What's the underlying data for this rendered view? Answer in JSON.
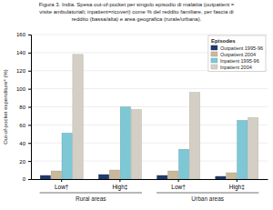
{
  "chart_data": {
    "type": "bar",
    "title": [
      "Figura 3. India. Spesa out-of-pocket per singolo episodio di malattia (outpatient =",
      "visite ambulatoriali; inpatient=ricoveri) come % del reddito familiare, per fascia di",
      "reddito (bassa/alta) e area geografica (rurale/urbana)."
    ],
    "y_label": "Out-of-pocket expenditure* (%)",
    "categories": [
      "Low†",
      "High‡",
      "Low†",
      "High‡"
    ],
    "annotations": [
      "Rural areas",
      "Urban areas"
    ],
    "series": [
      {
        "name": "Outpatient 1995-96",
        "color": "#1e3a6e",
        "values": [
          4,
          5,
          4,
          3
        ]
      },
      {
        "name": "Outpatient 2004",
        "color": "#c9b99a",
        "values": [
          9,
          10,
          9,
          7
        ]
      },
      {
        "name": "Inpatient 1995-96",
        "color": "#7ec8d5",
        "values": [
          51,
          80,
          33,
          65
        ]
      },
      {
        "name": "Inpatient 2004",
        "color": "#d4cfc5",
        "values": [
          138,
          77,
          96,
          68
        ]
      }
    ],
    "ylim": [
      0,
      160
    ],
    "yticks": [
      0,
      20,
      40,
      60,
      80,
      100,
      120,
      140,
      160
    ],
    "grid": true,
    "legend": "upper right",
    "legend_title": "Episodes"
  }
}
